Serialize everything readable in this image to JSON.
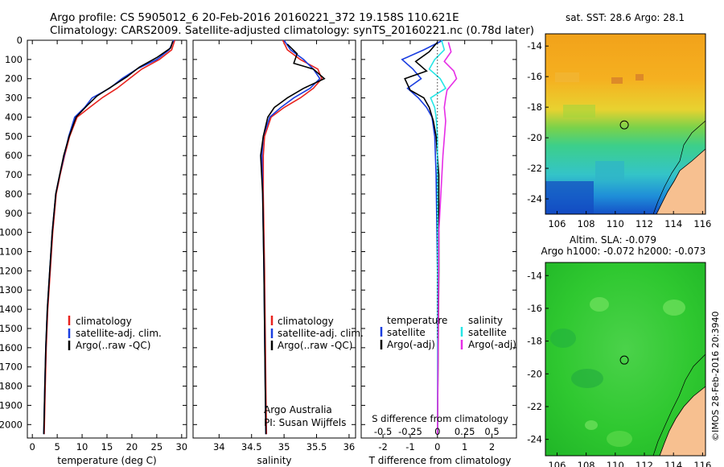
{
  "header": {
    "line1": "Argo profile: CS 5905012_6 20-Feb-2016 20160221_372 19.158S 110.621E",
    "line2": "Climatology: CARS2009. Satellite-adjusted climatology: synTS_20160221.nc (0.78d later)"
  },
  "colors": {
    "climatology": "#e8231e",
    "satellite": "#1a3ee0",
    "argo": "#000000",
    "s_satellite": "#26e6e6",
    "s_argo": "#e62ee6",
    "land": "#f7c090"
  },
  "chart_data": [
    {
      "type": "line",
      "id": "temperature",
      "xlabel": "temperature (deg C)",
      "ylabel": "",
      "xlim": [
        -1,
        31
      ],
      "ylim": [
        2070,
        0
      ],
      "xticks": [
        "0",
        "5",
        "10",
        "15",
        "20",
        "25",
        "30"
      ],
      "xtick_values": [
        0,
        5,
        10,
        15,
        20,
        25,
        30
      ],
      "yticks": [
        "0",
        "100",
        "200",
        "300",
        "400",
        "500",
        "600",
        "700",
        "800",
        "900",
        "1000",
        "1100",
        "1200",
        "1300",
        "1400",
        "1500",
        "1600",
        "1700",
        "1800",
        "1900",
        "2000"
      ],
      "legend": [
        "climatology",
        "satellite-adj. clim.",
        "Argo(..raw -QC)"
      ],
      "series": [
        {
          "name": "climatology",
          "color": "#e8231e",
          "x": [
            28.6,
            28.0,
            25.5,
            22.0,
            19.5,
            17.0,
            14.0,
            11.5,
            9.0,
            7.5,
            6.5,
            5.6,
            4.8,
            4.1,
            3.6,
            3.1,
            2.8,
            2.6,
            2.4
          ],
          "y": [
            0,
            50,
            100,
            150,
            200,
            250,
            300,
            350,
            400,
            500,
            600,
            700,
            800,
            1000,
            1200,
            1400,
            1600,
            1800,
            2050
          ]
        },
        {
          "name": "satellite-adj. clim.",
          "color": "#1a3ee0",
          "x": [
            28.4,
            27.5,
            25.0,
            21.0,
            18.0,
            15.5,
            12.0,
            10.5,
            8.5,
            7.3,
            6.4,
            5.5,
            4.7,
            4.0,
            3.5,
            3.0,
            2.7,
            2.5,
            2.3
          ],
          "y": [
            0,
            50,
            100,
            150,
            200,
            250,
            300,
            350,
            400,
            500,
            600,
            700,
            800,
            1000,
            1200,
            1400,
            1600,
            1800,
            2050
          ]
        },
        {
          "name": "Argo(..raw -QC)",
          "color": "#000000",
          "x": [
            28.2,
            27.8,
            25.0,
            21.5,
            19.0,
            16.0,
            13.0,
            11.0,
            8.8,
            7.4,
            6.3,
            5.5,
            4.7,
            4.0,
            3.5,
            3.0,
            2.7,
            2.5,
            2.3
          ],
          "y": [
            5,
            40,
            90,
            140,
            190,
            240,
            290,
            340,
            400,
            500,
            600,
            700,
            800,
            1000,
            1200,
            1400,
            1600,
            1800,
            2050
          ]
        }
      ]
    },
    {
      "type": "line",
      "id": "salinity",
      "xlabel": "salinity",
      "xlim": [
        33.6,
        36.1
      ],
      "ylim": [
        2070,
        0
      ],
      "xticks": [
        "34",
        "34.5",
        "35",
        "35.5",
        "36"
      ],
      "xtick_values": [
        34,
        34.5,
        35,
        35.5,
        36
      ],
      "legend": [
        "climatology",
        "satellite-adj. clim.",
        "Argo(..raw -QC)"
      ],
      "annotations": [
        "Argo Australia",
        "PI: Susan Wijffels"
      ],
      "series": [
        {
          "name": "climatology",
          "color": "#e8231e",
          "x": [
            34.98,
            35.05,
            35.25,
            35.52,
            35.58,
            35.45,
            35.25,
            35.0,
            34.8,
            34.7,
            34.68,
            34.68,
            34.69,
            34.7,
            34.71,
            34.72,
            34.73
          ],
          "y": [
            0,
            50,
            100,
            150,
            200,
            250,
            300,
            350,
            400,
            500,
            600,
            800,
            1000,
            1200,
            1500,
            1800,
            2050
          ]
        },
        {
          "name": "satellite-adj. clim.",
          "color": "#1a3ee0",
          "x": [
            35.0,
            35.1,
            35.3,
            35.45,
            35.55,
            35.4,
            35.15,
            34.95,
            34.78,
            34.68,
            34.66,
            34.67,
            34.68,
            34.69,
            34.7,
            34.71,
            34.72
          ],
          "y": [
            0,
            50,
            100,
            150,
            200,
            250,
            300,
            350,
            400,
            500,
            600,
            800,
            1000,
            1200,
            1500,
            1800,
            2050
          ]
        },
        {
          "name": "Argo(..raw -QC)",
          "color": "#000000",
          "x": [
            35.05,
            35.2,
            35.15,
            35.45,
            35.62,
            35.3,
            35.05,
            34.85,
            34.75,
            34.68,
            34.64,
            34.67,
            34.68,
            34.69,
            34.7,
            34.71,
            34.72
          ],
          "y": [
            20,
            70,
            120,
            150,
            200,
            250,
            300,
            350,
            400,
            500,
            600,
            800,
            1000,
            1200,
            1500,
            1800,
            2050
          ]
        }
      ]
    },
    {
      "type": "line",
      "id": "difference",
      "xlabel": "T difference from climatology",
      "xlabel2": "S difference from climatology",
      "xlim": [
        -2.8,
        2.9
      ],
      "ylim": [
        2070,
        0
      ],
      "xticks": [
        "-2",
        "-1",
        "0",
        "1",
        "2"
      ],
      "xtick_values": [
        -2,
        -1,
        0,
        1,
        2
      ],
      "xticks2": [
        "-0.5",
        "-0.25",
        "0",
        "0.25",
        "0.5"
      ],
      "xtick2_values": [
        -0.5,
        -0.25,
        0,
        0.25,
        0.5
      ],
      "legend_left_title": "temperature",
      "legend_right_title": "salinity",
      "legend": [
        "satellite",
        "Argo(-adj)",
        "satellite",
        "Argo(-adj)"
      ],
      "series": [
        {
          "name": "temperature satellite",
          "color": "#1a3ee0",
          "x": [
            0.2,
            -0.5,
            -1.3,
            -0.9,
            -0.6,
            -1.1,
            -0.7,
            -0.4,
            -0.2,
            -0.1,
            -0.05,
            0,
            0
          ],
          "y": [
            0,
            50,
            100,
            150,
            200,
            250,
            300,
            350,
            400,
            500,
            700,
            1200,
            2050
          ]
        },
        {
          "name": "temperature Argo(-adj)",
          "color": "#000000",
          "x": [
            0.0,
            -0.3,
            -0.8,
            -0.4,
            -1.2,
            -1.0,
            -0.5,
            -0.3,
            -0.15,
            -0.05,
            0.05,
            0.05,
            0
          ],
          "y": [
            10,
            60,
            110,
            160,
            200,
            260,
            300,
            350,
            420,
            500,
            700,
            1200,
            2050
          ]
        },
        {
          "name": "salinity satellite",
          "color": "#26e6e6",
          "x": [
            0.15,
            0.25,
            -0.1,
            -0.3,
            0.1,
            0.3,
            -0.25,
            -0.1,
            -0.05,
            0.0,
            0.0,
            0
          ],
          "y": [
            0,
            50,
            100,
            150,
            200,
            250,
            300,
            350,
            400,
            500,
            1000,
            2050
          ]
        },
        {
          "name": "salinity Argo(-adj)",
          "color": "#e62ee6",
          "x": [
            0.4,
            0.5,
            0.25,
            0.6,
            0.7,
            0.35,
            0.3,
            0.25,
            0.3,
            0.2,
            0.05,
            0
          ],
          "y": [
            10,
            60,
            110,
            160,
            200,
            260,
            300,
            350,
            420,
            600,
            1000,
            2050
          ]
        }
      ]
    },
    {
      "type": "heatmap",
      "id": "sst-map",
      "title": "sat. SST: 28.6  Argo: 28.1",
      "xticks": [
        "106",
        "108",
        "110",
        "112",
        "114",
        "116"
      ],
      "yticks": [
        "-14",
        "-16",
        "-18",
        "-20",
        "-22",
        "-24"
      ],
      "xlim": [
        105.2,
        116.2
      ],
      "ylim": [
        -25,
        -13.2
      ],
      "marker": {
        "lon": 110.621,
        "lat": -19.158
      }
    },
    {
      "type": "heatmap",
      "id": "sla-map",
      "title": "Altim. SLA: -0.079",
      "subtitle": "Argo h1000: -0.072 h2000: -0.073",
      "xticks": [
        "106",
        "108",
        "110",
        "112",
        "114",
        "116"
      ],
      "yticks": [
        "-14",
        "-16",
        "-18",
        "-20",
        "-22",
        "-24"
      ],
      "xlim": [
        105.2,
        116.2
      ],
      "ylim": [
        -25,
        -13.2
      ],
      "marker": {
        "lon": 110.621,
        "lat": -19.158
      }
    }
  ],
  "footer_stamp": "©IMOS 28-Feb-2016 20:3940"
}
